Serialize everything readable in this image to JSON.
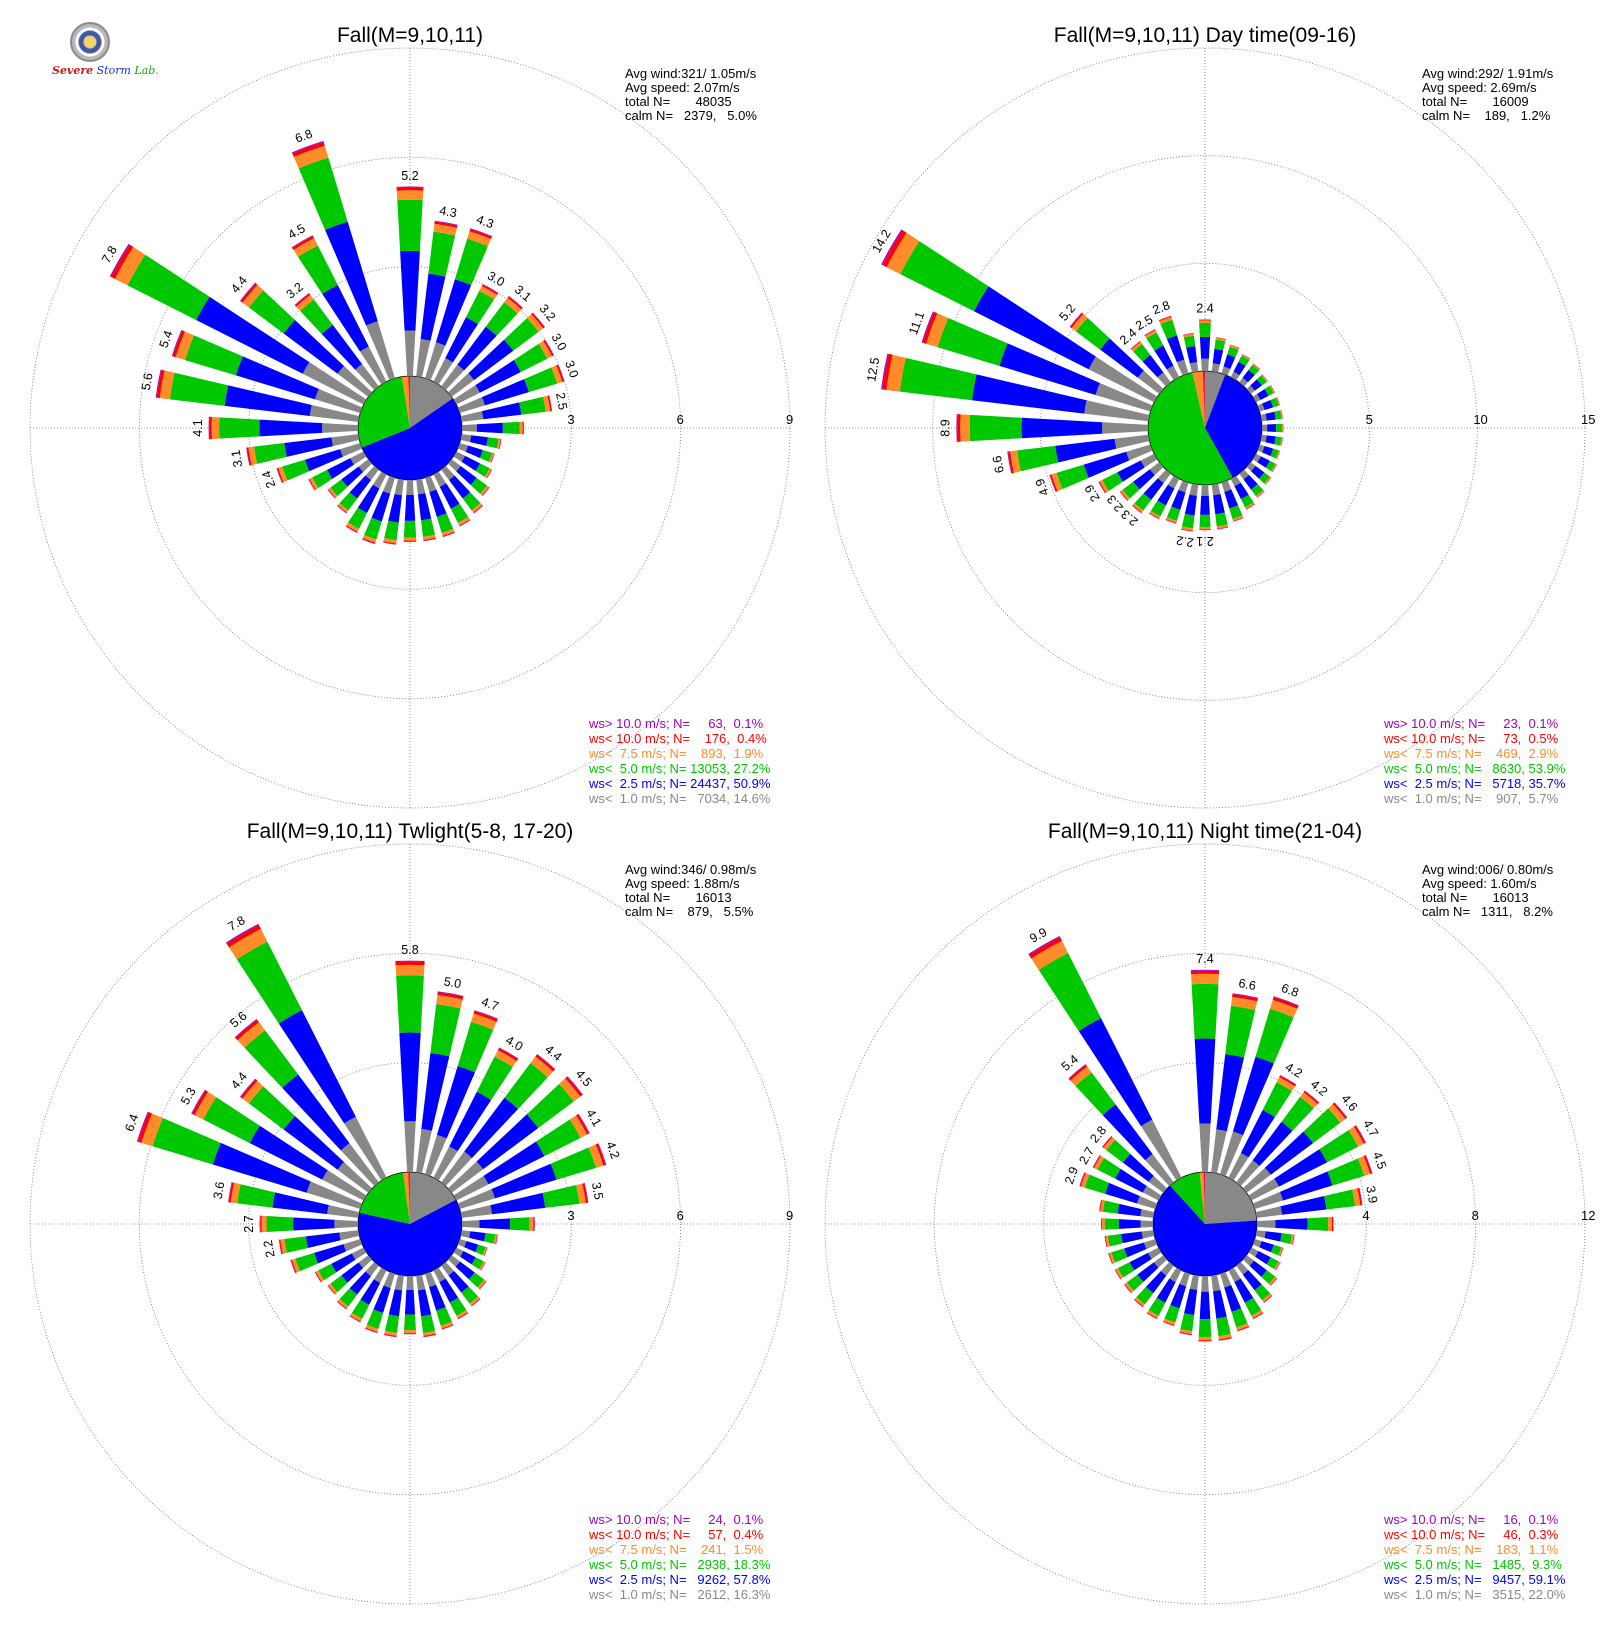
{
  "chart_data": [
    {
      "type": "wind-rose",
      "title": "Fall(M=9,10,11)",
      "rings": [
        3,
        6,
        9
      ],
      "stats": [
        "Avg wind:321/ 1.05m/s",
        "Avg speed: 2.07m/s",
        "total N=       48035",
        "calm N=   2379,   5.0%"
      ],
      "legend": [
        {
          "text": "ws> 10.0 m/s; N=     63,  0.1%",
          "color": "#a000c8"
        },
        {
          "text": "ws< 10.0 m/s; N=    176,  0.4%",
          "color": "#ff0000"
        },
        {
          "text": "ws<  7.5 m/s; N=    893,  1.9%",
          "color": "#ff8c28"
        },
        {
          "text": "ws<  5.0 m/s; N= 13053, 27.2%",
          "color": "#00c800"
        },
        {
          "text": "ws<  2.5 m/s; N= 24437, 50.9%",
          "color": "#0000ff"
        },
        {
          "text": "ws<  1.0 m/s; N=   7034, 14.6%",
          "color": "#888888"
        }
      ],
      "calm_pie": [
        14.6,
        50.9,
        27.2,
        1.9,
        0.4,
        0.1
      ],
      "directions_deg": [
        0,
        10,
        20,
        30,
        40,
        50,
        60,
        70,
        80,
        90,
        100,
        110,
        120,
        130,
        140,
        150,
        160,
        170,
        180,
        190,
        200,
        210,
        220,
        230,
        240,
        250,
        260,
        270,
        280,
        290,
        300,
        310,
        320,
        330,
        340,
        350
      ],
      "totals": [
        5.2,
        4.3,
        4.3,
        3.0,
        3.1,
        3.2,
        3.0,
        3.0,
        2.5,
        1.7,
        1.1,
        1.0,
        1.1,
        1.3,
        1.5,
        1.6,
        1.7,
        1.7,
        1.7,
        1.8,
        1.9,
        1.8,
        1.5,
        1.4,
        1.7,
        2.4,
        3.1,
        4.1,
        5.6,
        5.4,
        7.8,
        4.4,
        3.2,
        4.5,
        6.8,
        0
      ],
      "labeled": [
        0,
        1,
        2,
        3,
        4,
        5,
        6,
        7,
        8,
        25,
        26,
        27,
        28,
        29,
        30,
        31,
        32,
        33,
        34
      ],
      "label_text": [
        "5.2",
        "4.3",
        "4.3",
        "3.0",
        "3.1",
        "3.2",
        "3.0",
        "3.0",
        "2.5",
        "2.4",
        "3.1",
        "4.1",
        "5.6",
        "5.4",
        "7.8",
        "4.4",
        "3.2",
        "4.5",
        "6.8"
      ]
    },
    {
      "type": "wind-rose",
      "title": "Fall(M=9,10,11) Day time(09-16)",
      "rings": [
        5,
        10,
        15
      ],
      "stats": [
        "Avg wind:292/ 1.91m/s",
        "Avg speed: 2.69m/s",
        "total N=       16009",
        "calm N=    189,   1.2%"
      ],
      "legend": [
        {
          "text": "ws> 10.0 m/s; N=     23,  0.1%",
          "color": "#a000c8"
        },
        {
          "text": "ws< 10.0 m/s; N=     73,  0.5%",
          "color": "#ff0000"
        },
        {
          "text": "ws<  7.5 m/s; N=    469,  2.9%",
          "color": "#ff8c28"
        },
        {
          "text": "ws<  5.0 m/s; N=   8630, 53.9%",
          "color": "#00c800"
        },
        {
          "text": "ws<  2.5 m/s; N=   5718, 35.7%",
          "color": "#0000ff"
        },
        {
          "text": "ws<  1.0 m/s; N=    907,  5.7%",
          "color": "#888888"
        }
      ],
      "calm_pie": [
        5.7,
        35.7,
        53.9,
        2.9,
        0.5,
        0.1
      ],
      "directions_deg": [
        0,
        10,
        20,
        30,
        40,
        50,
        60,
        70,
        80,
        90,
        100,
        110,
        120,
        130,
        140,
        150,
        160,
        170,
        180,
        190,
        200,
        210,
        220,
        230,
        240,
        250,
        260,
        270,
        280,
        290,
        300,
        310,
        320,
        330,
        340,
        350
      ],
      "totals": [
        2.4,
        1.6,
        1.4,
        1.2,
        1.1,
        1.0,
        1.0,
        1.0,
        1.0,
        1.0,
        1.0,
        1.0,
        1.1,
        1.2,
        1.4,
        1.6,
        1.9,
        2.1,
        2.1,
        2.2,
        2.0,
        2.1,
        2.3,
        2.3,
        2.9,
        4.9,
        6.6,
        8.9,
        12.5,
        11.1,
        14.2,
        5.2,
        2.4,
        2.5,
        2.8,
        1.8
      ],
      "labeled": [
        0,
        18,
        19,
        22,
        23,
        24,
        25,
        26,
        27,
        28,
        29,
        30,
        31,
        32,
        33,
        34
      ],
      "label_text": [
        "2.4",
        "2.1",
        "2.2",
        "2.3",
        "2.3",
        "2.9",
        "4.9",
        "6.6",
        "8.9",
        "12.5",
        "11.1",
        "14.2",
        "5.2",
        "2.4",
        "2.5",
        "2.8"
      ]
    },
    {
      "type": "wind-rose",
      "title": "Fall(M=9,10,11) Twlight(5-8, 17-20)",
      "rings": [
        3,
        6,
        9
      ],
      "stats": [
        "Avg wind:346/ 0.98m/s",
        "Avg speed: 1.88m/s",
        "total N=       16013",
        "calm N=    879,   5.5%"
      ],
      "legend": [
        {
          "text": "ws> 10.0 m/s; N=     24,  0.1%",
          "color": "#a000c8"
        },
        {
          "text": "ws< 10.0 m/s; N=     57,  0.4%",
          "color": "#ff0000"
        },
        {
          "text": "ws<  7.5 m/s; N=    241,  1.5%",
          "color": "#ff8c28"
        },
        {
          "text": "ws<  5.0 m/s; N=   2938, 18.3%",
          "color": "#00c800"
        },
        {
          "text": "ws<  2.5 m/s; N=   9262, 57.8%",
          "color": "#0000ff"
        },
        {
          "text": "ws<  1.0 m/s; N=   2612, 16.3%",
          "color": "#888888"
        }
      ],
      "calm_pie": [
        16.3,
        57.8,
        18.3,
        1.5,
        0.4,
        0.1
      ],
      "directions_deg": [
        0,
        10,
        20,
        30,
        40,
        50,
        60,
        70,
        80,
        90,
        100,
        110,
        120,
        130,
        140,
        150,
        160,
        170,
        180,
        190,
        200,
        210,
        220,
        230,
        240,
        250,
        260,
        270,
        280,
        290,
        300,
        310,
        320,
        330,
        340,
        350
      ],
      "totals": [
        5.8,
        5.0,
        4.7,
        4.0,
        4.4,
        4.5,
        4.1,
        4.2,
        3.5,
        2.0,
        1.0,
        0.8,
        0.9,
        1.2,
        1.4,
        1.5,
        1.6,
        1.7,
        1.6,
        1.7,
        1.7,
        1.6,
        1.5,
        1.4,
        1.5,
        2.0,
        2.2,
        2.7,
        3.6,
        6.4,
        5.3,
        4.4,
        5.6,
        7.8,
        0,
        0
      ],
      "labeled": [
        0,
        1,
        2,
        3,
        4,
        5,
        6,
        7,
        8,
        26,
        27,
        28,
        29,
        30,
        31,
        32,
        33
      ],
      "label_text": [
        "5.8",
        "5.0",
        "4.7",
        "4.0",
        "4.4",
        "4.5",
        "4.1",
        "4.2",
        "3.5",
        "2.2",
        "2.7",
        "3.6",
        "6.4",
        "5.3",
        "4.4",
        "5.6",
        "7.8"
      ]
    },
    {
      "type": "wind-rose",
      "title": "Fall(M=9,10,11) Night time(21-04)",
      "rings": [
        4,
        8,
        12
      ],
      "stats": [
        "Avg wind:006/ 0.80m/s",
        "Avg speed: 1.60m/s",
        "total N=       16013",
        "calm N=   1311,   8.2%"
      ],
      "legend": [
        {
          "text": "ws> 10.0 m/s; N=     16,  0.1%",
          "color": "#a000c8"
        },
        {
          "text": "ws< 10.0 m/s; N=     46,  0.3%",
          "color": "#ff0000"
        },
        {
          "text": "ws<  7.5 m/s; N=    183,  1.1%",
          "color": "#ff8c28"
        },
        {
          "text": "ws<  5.0 m/s; N=   1485,  9.3%",
          "color": "#00c800"
        },
        {
          "text": "ws<  2.5 m/s; N=   9457, 59.1%",
          "color": "#0000ff"
        },
        {
          "text": "ws<  1.0 m/s; N=   3515, 22.0%",
          "color": "#888888"
        }
      ],
      "calm_pie": [
        22.0,
        59.1,
        9.3,
        1.1,
        0.3,
        0.1
      ],
      "directions_deg": [
        0,
        10,
        20,
        30,
        40,
        50,
        60,
        70,
        80,
        90,
        100,
        110,
        120,
        130,
        140,
        150,
        160,
        170,
        180,
        190,
        200,
        210,
        220,
        230,
        240,
        250,
        260,
        270,
        280,
        290,
        300,
        310,
        320,
        330,
        340,
        350
      ],
      "totals": [
        7.4,
        6.6,
        6.8,
        4.2,
        4.2,
        4.6,
        4.7,
        4.5,
        3.9,
        2.8,
        1.4,
        1.1,
        1.2,
        1.4,
        1.7,
        2.0,
        2.2,
        2.4,
        2.4,
        2.2,
        2.0,
        2.0,
        1.9,
        1.8,
        1.8,
        1.8,
        1.8,
        1.9,
        2.0,
        2.9,
        2.7,
        2.8,
        5.4,
        9.9,
        0,
        0
      ],
      "labeled": [
        0,
        1,
        2,
        3,
        4,
        5,
        6,
        7,
        8,
        29,
        30,
        31,
        32,
        33
      ],
      "label_text": [
        "7.4",
        "6.6",
        "6.8",
        "4.2",
        "4.2",
        "4.6",
        "4.7",
        "4.5",
        "3.9",
        "2.9",
        "2.7",
        "2.8",
        "5.4",
        "9.9"
      ]
    }
  ],
  "logo": {
    "text_severe": "Severe",
    "text_storm": "Storm",
    "text_lab": "Lab."
  }
}
